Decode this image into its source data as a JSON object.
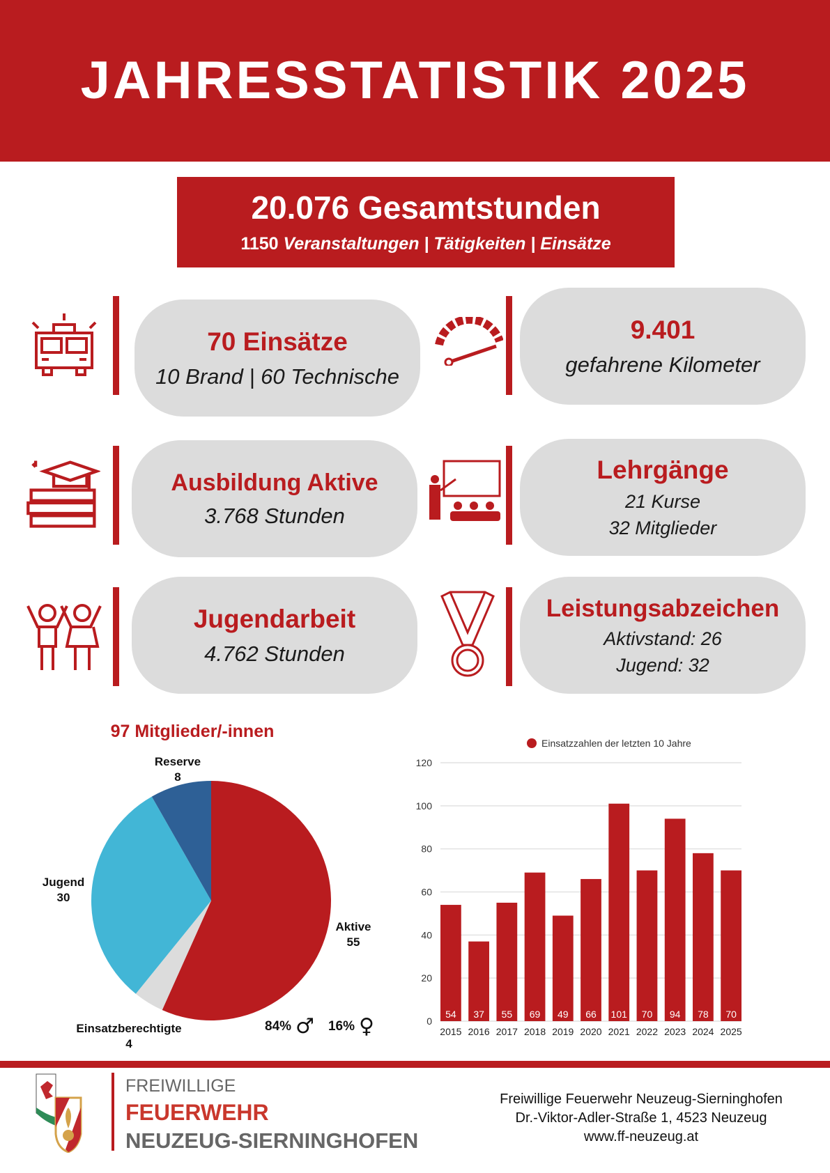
{
  "header": {
    "title": "JAHRESSTATISTIK 2025"
  },
  "total": {
    "hours": "20.076 Gesamtstunden",
    "count": "1150",
    "activities": "Veranstaltungen | Tätigkeiten | Einsätze"
  },
  "cards": [
    {
      "title": "70 Einsätze",
      "text": "10 Brand | 60 Technische",
      "icon": "fire-truck-icon"
    },
    {
      "title": "9.401",
      "text": "gefahrene Kilometer",
      "icon": "speedometer-icon"
    },
    {
      "title": "Ausbildung Aktive",
      "text": "3.768 Stunden",
      "icon": "graduation-books-icon"
    },
    {
      "title": "Lehrgänge",
      "line1": "21 Kurse",
      "line2": "32 Mitglieder",
      "icon": "teacher-class-icon"
    },
    {
      "title": "Jugendarbeit",
      "text": "4.762 Stunden",
      "icon": "children-icon"
    },
    {
      "title": "Leistungsabzeichen",
      "line1": "Aktivstand: 26",
      "line2": "Jugend: 32",
      "icon": "medal-icon"
    }
  ],
  "pie": {
    "title": "97 Mitglieder/-innen",
    "male": "84%",
    "female": "16%"
  },
  "chart_data": [
    {
      "type": "pie",
      "title": "97 Mitglieder/-innen",
      "slices": [
        {
          "label": "Aktive",
          "value": 55,
          "color": "#b91c1f"
        },
        {
          "label": "Einsatzberechtigte",
          "value": 4,
          "color": "#dcdcdc"
        },
        {
          "label": "Jugend",
          "value": 30,
          "color": "#42b6d6"
        },
        {
          "label": "Reserve",
          "value": 8,
          "color": "#2e6096"
        }
      ]
    },
    {
      "type": "bar",
      "legend": "Einsatzzahlen der letzten 10 Jahre",
      "legend_position": "top",
      "grid": true,
      "categories": [
        "2015",
        "2016",
        "2017",
        "2018",
        "2019",
        "2020",
        "2021",
        "2022",
        "2023",
        "2024",
        "2025"
      ],
      "values": [
        54,
        37,
        55,
        69,
        49,
        66,
        101,
        70,
        94,
        78,
        70
      ],
      "ylim": [
        0,
        120
      ],
      "yticks": [
        0,
        20,
        40,
        60,
        80,
        100,
        120
      ],
      "color": "#b91c1f"
    }
  ],
  "footer": {
    "logo_line1": "FREIWILLIGE",
    "logo_line2": "FEUERWEHR",
    "logo_line3": "NEUZEUG-SIERNINGHOFEN",
    "address1": "Freiwillige Feuerwehr Neuzeug-Sierninghofen",
    "address2": "Dr.-Viktor-Adler-Straße 1, 4523 Neuzeug",
    "website": "www.ff-neuzeug.at"
  }
}
